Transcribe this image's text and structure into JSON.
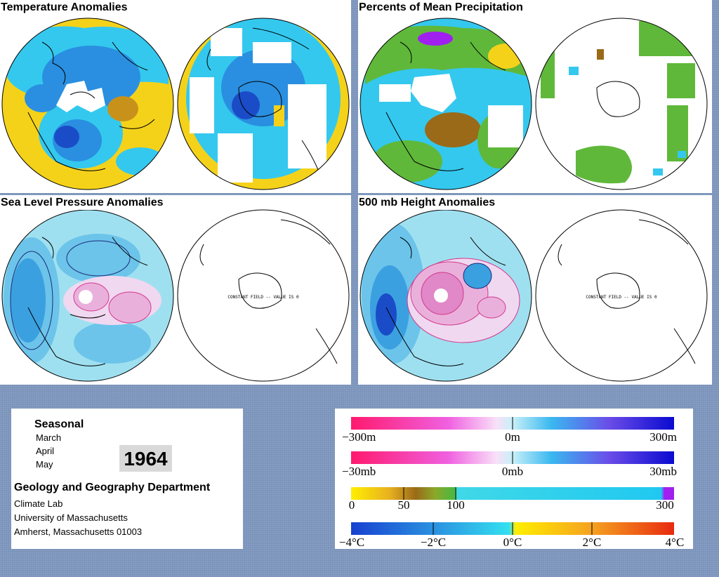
{
  "panels": [
    {
      "title": "Temperature Anomalies"
    },
    {
      "title": "Percents of Mean Precipitation"
    },
    {
      "title": "Sea Level Pressure Anomalies"
    },
    {
      "title": "500 mb Height Anomalies"
    }
  ],
  "constant_field_text": "CONSTANT FIELD -- VALUE IS 0",
  "info": {
    "season": "Seasonal",
    "months": [
      "March",
      "April",
      "May"
    ],
    "year": "1964",
    "department": "Geology and Geography Department",
    "address": [
      "Climate Lab",
      "University of Massachusetts",
      "Amherst, Massachusetts 01003"
    ]
  },
  "legends": [
    {
      "name": "height",
      "labels": [
        "−300m",
        "0m",
        "300m"
      ]
    },
    {
      "name": "pressure",
      "labels": [
        "−30mb",
        "0mb",
        "30mb"
      ]
    },
    {
      "name": "precipitation",
      "labels": [
        "0",
        "50",
        "100",
        "300"
      ]
    },
    {
      "name": "temperature",
      "labels": [
        "−4°C",
        "−2°C",
        "0°C",
        "2°C",
        "4°C"
      ]
    }
  ],
  "colors": {
    "background": "#7b93b8",
    "warm": "#f5d21a",
    "cool_light": "#34c8ee",
    "cool_mid": "#2a8fe0",
    "cool_dark": "#1a4cc8",
    "no_data": "#ffffff",
    "positive_contour": "#d23a8c",
    "negative_contour": "#1a2a7a",
    "dry_brown": "#9a6a18",
    "wet_green": "#5fb83a",
    "very_wet_purple": "#a020f0"
  }
}
